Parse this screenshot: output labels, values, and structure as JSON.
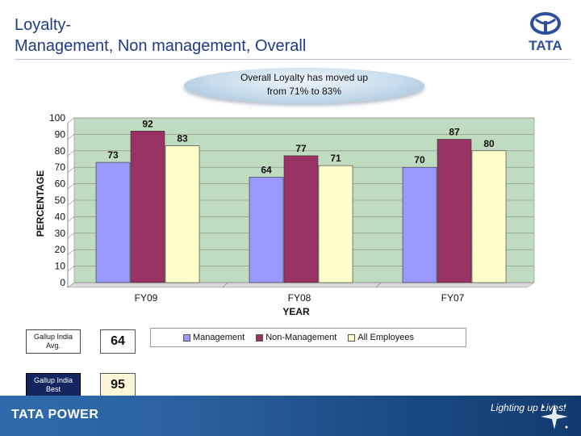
{
  "header": {
    "title_line1": "Loyalty-",
    "title_line2": "Management, Non management, Overall",
    "logo_text": "TATA"
  },
  "callout": {
    "line1": "Overall Loyalty has moved up",
    "line2": "from 71% to 83%"
  },
  "chart_data": {
    "type": "bar",
    "categories": [
      "FY09",
      "FY08",
      "FY07"
    ],
    "series": [
      {
        "name": "Management",
        "values": [
          73,
          64,
          70
        ],
        "color": "#9999ff"
      },
      {
        "name": "Non-Management",
        "values": [
          92,
          77,
          87
        ],
        "color": "#993366"
      },
      {
        "name": "All Employees",
        "values": [
          83,
          71,
          80
        ],
        "color": "#ffffcc"
      }
    ],
    "xlabel": "YEAR",
    "ylabel": "PERCENTAGE",
    "ylim": [
      0,
      100
    ],
    "yticks": [
      0,
      10,
      20,
      30,
      40,
      50,
      60,
      70,
      80,
      90,
      100
    ],
    "grid": true,
    "plot_background": "#c0dcc0",
    "legend_position": "bottom"
  },
  "gallup": {
    "avg_label": "Gallup India Avg.",
    "avg_value": "64",
    "best_label": "Gallup India Best",
    "best_value": "95"
  },
  "footer": {
    "brand": "TATA POWER",
    "tagline": "Lighting up Lives!"
  }
}
